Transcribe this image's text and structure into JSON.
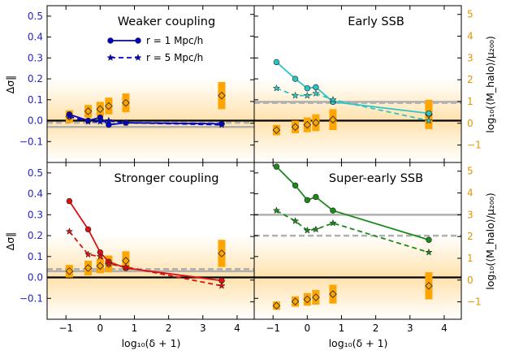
{
  "figure": {
    "xlabel": "log₁₀(δ + 1)",
    "ylabel_left": "Δσ∥",
    "ylabel_right": "log₁₀(⟨M_halo⟩/μ₂₀₀)"
  },
  "colors": {
    "left_tick": "#1f1fcc",
    "right_tick": "#e59400",
    "bar": "#ffa500",
    "ref_line": "#b0b0b0",
    "zero_line": "#000000"
  },
  "legend": {
    "r1_label": "r = 1 Mpc/h",
    "r5_label": "r = 5 Mpc/h"
  },
  "chart_data": [
    {
      "type": "line",
      "panel": "top-left",
      "title": "Weaker coupling",
      "color": "#0000cc",
      "x": [
        -0.9,
        -0.35,
        0.0,
        0.25,
        0.75,
        3.55
      ],
      "series": [
        {
          "name": "r = 1 Mpc/h",
          "style": "solid",
          "marker": "circle",
          "values": [
            0.03,
            0.0,
            0.015,
            -0.02,
            -0.01,
            -0.015
          ]
        },
        {
          "name": "r = 5 Mpc/h",
          "style": "dashed",
          "marker": "star",
          "values": [
            0.02,
            -0.005,
            -0.005,
            0.0,
            -0.01,
            -0.02
          ]
        }
      ],
      "ref_solid": -0.03,
      "ref_dashed": -0.01,
      "mass_bars": [
        {
          "x": -0.9,
          "center": 0.02,
          "half": 0.03
        },
        {
          "x": -0.35,
          "center": 0.045,
          "half": 0.03
        },
        {
          "x": 0.0,
          "center": 0.055,
          "half": 0.035
        },
        {
          "x": 0.25,
          "center": 0.07,
          "half": 0.04
        },
        {
          "x": 0.75,
          "center": 0.085,
          "half": 0.045
        },
        {
          "x": 3.55,
          "center": 0.12,
          "half": 0.065
        }
      ],
      "ylim": [
        -0.2,
        0.55
      ],
      "xlim": [
        -1.55,
        4.5
      ],
      "right_lim": [
        -1.8,
        5.4
      ]
    },
    {
      "type": "line",
      "panel": "top-right",
      "title": "Early SSB",
      "color": "#2ec4c4",
      "x": [
        -0.9,
        -0.35,
        0.0,
        0.25,
        0.75,
        3.55
      ],
      "series": [
        {
          "name": "r = 1 Mpc/h",
          "style": "solid",
          "marker": "circle",
          "values": [
            0.28,
            0.2,
            0.155,
            0.16,
            0.09,
            0.035
          ]
        },
        {
          "name": "r = 5 Mpc/h",
          "style": "dashed",
          "marker": "star",
          "values": [
            0.155,
            0.12,
            0.12,
            0.13,
            0.1,
            0.0
          ]
        }
      ],
      "ref_solid": 0.09,
      "ref_dashed": 0.085,
      "mass_bars": [
        {
          "x": -0.9,
          "center": -0.045,
          "half": 0.025
        },
        {
          "x": -0.35,
          "center": -0.03,
          "half": 0.03
        },
        {
          "x": 0.0,
          "center": -0.02,
          "half": 0.035
        },
        {
          "x": 0.25,
          "center": -0.01,
          "half": 0.04
        },
        {
          "x": 0.75,
          "center": 0.005,
          "half": 0.05
        },
        {
          "x": 3.55,
          "center": 0.03,
          "half": 0.07
        }
      ],
      "ylim": [
        -0.2,
        0.55
      ],
      "xlim": [
        -1.55,
        4.5
      ],
      "right_lim": [
        -1.8,
        5.4
      ]
    },
    {
      "type": "line",
      "panel": "bottom-left",
      "title": "Stronger coupling",
      "color": "#dd1111",
      "x": [
        -0.9,
        -0.35,
        0.0,
        0.25,
        0.75,
        3.55
      ],
      "series": [
        {
          "name": "r = 1 Mpc/h",
          "style": "solid",
          "marker": "circle",
          "values": [
            0.365,
            0.23,
            0.12,
            0.075,
            0.045,
            -0.015
          ]
        },
        {
          "name": "r = 5 Mpc/h",
          "style": "dashed",
          "marker": "star",
          "values": [
            0.22,
            0.11,
            0.1,
            0.065,
            0.05,
            -0.04
          ]
        }
      ],
      "ref_solid": 0.03,
      "ref_dashed": 0.04,
      "mass_bars": [
        {
          "x": -0.9,
          "center": 0.03,
          "half": 0.03
        },
        {
          "x": -0.35,
          "center": 0.045,
          "half": 0.035
        },
        {
          "x": 0.0,
          "center": 0.055,
          "half": 0.035
        },
        {
          "x": 0.25,
          "center": 0.065,
          "half": 0.04
        },
        {
          "x": 0.75,
          "center": 0.08,
          "half": 0.045
        },
        {
          "x": 3.55,
          "center": 0.115,
          "half": 0.065
        }
      ],
      "ylim": [
        -0.2,
        0.55
      ],
      "xlim": [
        -1.55,
        4.5
      ],
      "right_lim": [
        -1.8,
        5.4
      ]
    },
    {
      "type": "line",
      "panel": "bottom-right",
      "title": "Super-early SSB",
      "color": "#1a8a1a",
      "x": [
        -0.9,
        -0.35,
        0.0,
        0.25,
        0.75,
        3.55
      ],
      "series": [
        {
          "name": "r = 1 Mpc/h",
          "style": "solid",
          "marker": "circle",
          "values": [
            0.53,
            0.44,
            0.37,
            0.385,
            0.32,
            0.18
          ]
        },
        {
          "name": "r = 5 Mpc/h",
          "style": "dashed",
          "marker": "star",
          "values": [
            0.32,
            0.27,
            0.225,
            0.23,
            0.26,
            0.12
          ]
        }
      ],
      "ref_solid": 0.3,
      "ref_dashed": 0.2,
      "mass_bars": [
        {
          "x": -0.9,
          "center": -0.135,
          "half": 0.02
        },
        {
          "x": -0.35,
          "center": -0.115,
          "half": 0.025
        },
        {
          "x": 0.0,
          "center": -0.105,
          "half": 0.03
        },
        {
          "x": 0.25,
          "center": -0.095,
          "half": 0.035
        },
        {
          "x": 0.75,
          "center": -0.08,
          "half": 0.045
        },
        {
          "x": 3.55,
          "center": -0.04,
          "half": 0.065
        }
      ],
      "ylim": [
        -0.2,
        0.55
      ],
      "xlim": [
        -1.55,
        4.5
      ],
      "right_lim": [
        -1.8,
        5.4
      ]
    }
  ],
  "ticks": {
    "x": [
      -1,
      0,
      1,
      2,
      3,
      4
    ],
    "y_left": [
      -0.1,
      0.0,
      0.1,
      0.2,
      0.3,
      0.4,
      0.5
    ],
    "y_left_labels": [
      "−0.1",
      "0.0",
      "0.1",
      "0.2",
      "0.3",
      "0.4",
      "0.5"
    ],
    "y_right": [
      -1,
      0,
      1,
      2,
      3,
      4,
      5
    ],
    "y_right_labels": [
      "−1",
      "0",
      "1",
      "2",
      "3",
      "4",
      "5"
    ],
    "x_labels": [
      "−1",
      "0",
      "1",
      "2",
      "3",
      "4"
    ]
  }
}
